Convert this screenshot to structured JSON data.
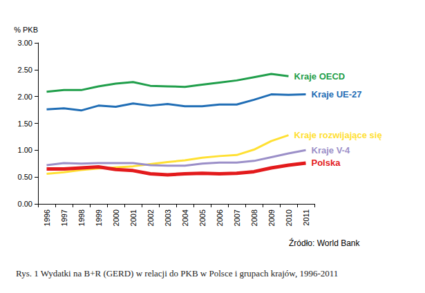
{
  "chart_data": {
    "type": "line",
    "title": "Rys. 1 Wydatki na B+R (GERD) w relacji do PKB w Polsce i grupach krajów, 1996-2011",
    "source": "Źródło: World Bank",
    "y_label": "% PKB",
    "categories": [
      "1996",
      "1997",
      "1998",
      "1999",
      "2000",
      "2001",
      "2002",
      "2003",
      "2004",
      "2005",
      "2006",
      "2007",
      "2008",
      "2009",
      "2010",
      "2011"
    ],
    "series": [
      {
        "name": "Kraje OECD",
        "color": "#1f9e4a",
        "values": [
          2.09,
          2.12,
          2.12,
          2.19,
          2.24,
          2.27,
          2.2,
          2.19,
          2.18,
          2.22,
          2.26,
          2.3,
          2.36,
          2.42,
          2.38,
          null
        ]
      },
      {
        "name": "Kraje UE-27",
        "color": "#1f6db5",
        "values": [
          1.76,
          1.78,
          1.74,
          1.83,
          1.81,
          1.87,
          1.83,
          1.86,
          1.82,
          1.82,
          1.85,
          1.85,
          1.94,
          2.04,
          2.03,
          2.04
        ]
      },
      {
        "name": "Kraje rozwijające się",
        "color": "#ffe033",
        "values": [
          0.56,
          0.59,
          0.63,
          0.66,
          0.68,
          0.7,
          0.74,
          0.78,
          0.81,
          0.86,
          0.89,
          0.91,
          1.01,
          1.17,
          1.28,
          null
        ]
      },
      {
        "name": "Kraje V-4",
        "color": "#9b8fc8",
        "values": [
          0.72,
          0.76,
          0.75,
          0.76,
          0.76,
          0.76,
          0.72,
          0.71,
          0.71,
          0.75,
          0.77,
          0.77,
          0.8,
          0.87,
          0.94,
          1.0
        ]
      },
      {
        "name": "Polska",
        "color": "#e31a1c",
        "values": [
          0.65,
          0.65,
          0.67,
          0.69,
          0.64,
          0.62,
          0.56,
          0.54,
          0.56,
          0.57,
          0.56,
          0.57,
          0.6,
          0.67,
          0.72,
          0.76
        ]
      }
    ],
    "ylim": [
      0,
      3
    ],
    "yticks": [
      {
        "value": 0,
        "label": "0.00"
      },
      {
        "value": 0.5,
        "label": "0.50"
      },
      {
        "value": 1,
        "label": "1.00"
      },
      {
        "value": 1.5,
        "label": "1.50"
      },
      {
        "value": 2,
        "label": "2.00"
      },
      {
        "value": 2.5,
        "label": "2.50"
      },
      {
        "value": 3,
        "label": "3.00"
      }
    ],
    "grid": false
  }
}
